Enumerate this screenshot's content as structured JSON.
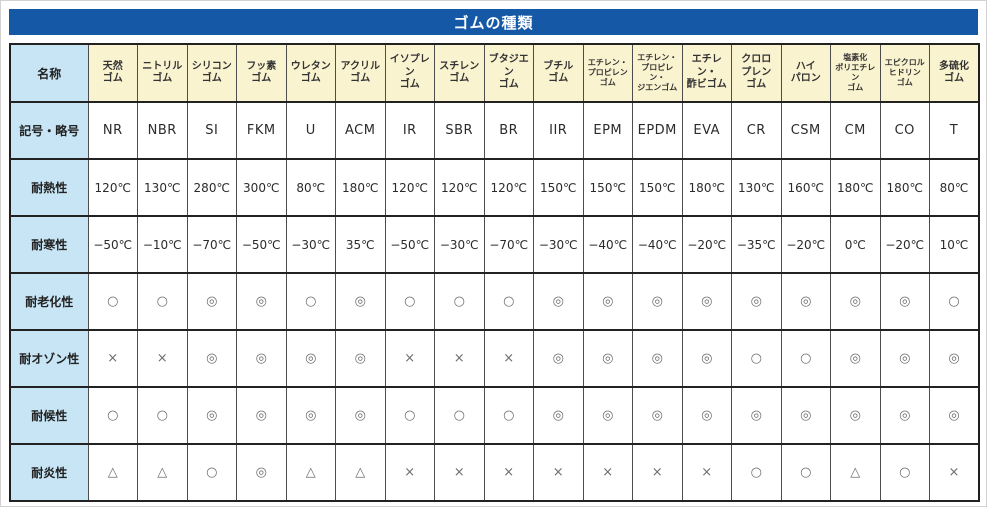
{
  "title": "ゴムの種類",
  "colors": {
    "title_bg": "#1458a6",
    "header_bg": "#faf3d0",
    "label_bg": "#c8e5f6",
    "border_dark": "#222222"
  },
  "table": {
    "corner_label": "名称",
    "columns": [
      "天然\nゴム",
      "ニトリル\nゴム",
      "シリコン\nゴム",
      "フッ素\nゴム",
      "ウレタン\nゴム",
      "アクリル\nゴム",
      "イソプレン\nゴム",
      "スチレン\nゴム",
      "ブタジエン\nゴム",
      "ブチル\nゴム",
      "エチレン・\nプロピレン\nゴム",
      "エチレン・\nプロピレン・\nジエンゴム",
      "エチレン・\n酢ビゴム",
      "クロロ\nプレン\nゴム",
      "ハイ\nパロン",
      "塩素化\nポリエチレン\nゴム",
      "エピクロル\nヒドリン\nゴム",
      "多硫化\nゴム"
    ],
    "rows": [
      {
        "label": "記号・略号",
        "cells": [
          "NR",
          "NBR",
          "SI",
          "FKM",
          "U",
          "ACM",
          "IR",
          "SBR",
          "BR",
          "IIR",
          "EPM",
          "EPDM",
          "EVA",
          "CR",
          "CSM",
          "CM",
          "CO",
          "T"
        ]
      },
      {
        "label": "耐熱性",
        "cells": [
          "120℃",
          "130℃",
          "280℃",
          "300℃",
          "80℃",
          "180℃",
          "120℃",
          "120℃",
          "120℃",
          "150℃",
          "150℃",
          "150℃",
          "180℃",
          "130℃",
          "160℃",
          "180℃",
          "180℃",
          "80℃"
        ]
      },
      {
        "label": "耐寒性",
        "cells": [
          "−50℃",
          "−10℃",
          "−70℃",
          "−50℃",
          "−30℃",
          "35℃",
          "−50℃",
          "−30℃",
          "−70℃",
          "−30℃",
          "−40℃",
          "−40℃",
          "−20℃",
          "−35℃",
          "−20℃",
          "0℃",
          "−20℃",
          "10℃"
        ]
      },
      {
        "label": "耐老化性",
        "cells": [
          "○",
          "○",
          "◎",
          "◎",
          "○",
          "◎",
          "○",
          "○",
          "○",
          "◎",
          "◎",
          "◎",
          "◎",
          "◎",
          "◎",
          "◎",
          "◎",
          "○"
        ]
      },
      {
        "label": "耐オゾン性",
        "cells": [
          "×",
          "×",
          "◎",
          "◎",
          "◎",
          "◎",
          "×",
          "×",
          "×",
          "◎",
          "◎",
          "◎",
          "◎",
          "○",
          "○",
          "◎",
          "◎",
          "◎"
        ]
      },
      {
        "label": "耐候性",
        "cells": [
          "○",
          "○",
          "◎",
          "◎",
          "◎",
          "◎",
          "○",
          "○",
          "○",
          "◎",
          "◎",
          "◎",
          "◎",
          "◎",
          "◎",
          "◎",
          "◎",
          "◎"
        ]
      },
      {
        "label": "耐炎性",
        "cells": [
          "△",
          "△",
          "○",
          "◎",
          "△",
          "△",
          "×",
          "×",
          "×",
          "×",
          "×",
          "×",
          "×",
          "○",
          "○",
          "△",
          "○",
          "×"
        ]
      }
    ]
  }
}
